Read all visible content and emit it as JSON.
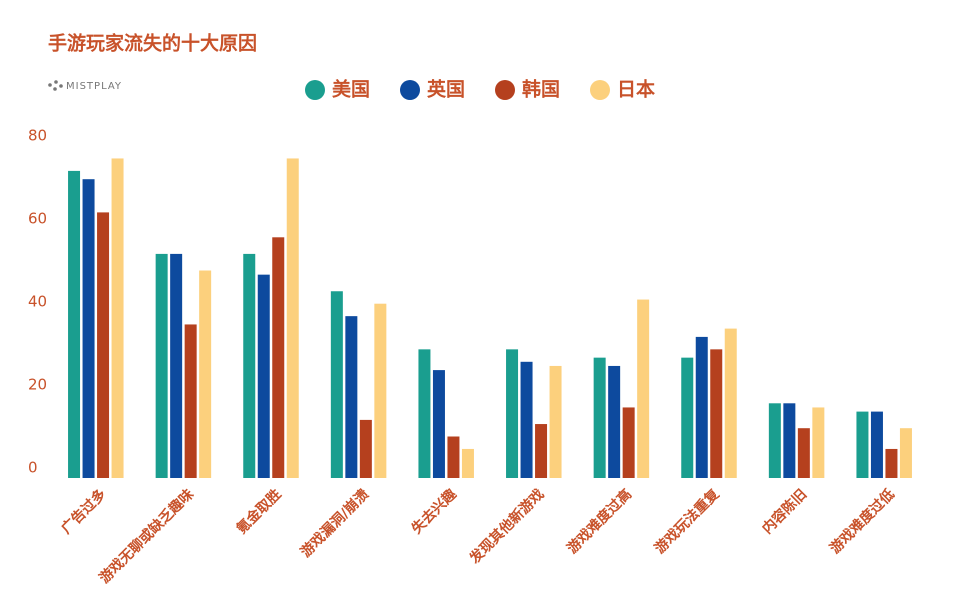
{
  "chart_data": {
    "type": "bar",
    "title": "手游玩家流失的十大原因",
    "source": "MISTPLAY",
    "categories": [
      "广告过多",
      "游戏无聊或缺乏趣味",
      "氪金取胜",
      "游戏漏洞/崩溃",
      "失去兴趣",
      "发现其他新游戏",
      "游戏难度过高",
      "游戏玩法重复",
      "内容陈旧",
      "游戏难度过低"
    ],
    "series": [
      {
        "name": "美国",
        "color": "#1a9e8f",
        "values": [
          74,
          54,
          54,
          45,
          31,
          31,
          29,
          29,
          18,
          16
        ]
      },
      {
        "name": "英国",
        "color": "#0d4a9e",
        "values": [
          72,
          54,
          49,
          39,
          26,
          28,
          27,
          34,
          18,
          16
        ]
      },
      {
        "name": "韩国",
        "color": "#b5401e",
        "values": [
          64,
          37,
          58,
          14,
          10,
          13,
          17,
          31,
          12,
          7
        ]
      },
      {
        "name": "日本",
        "color": "#fcd07d",
        "values": [
          77,
          50,
          77,
          42,
          7,
          27,
          43,
          36,
          17,
          12
        ]
      }
    ],
    "ylim": [
      0,
      80
    ],
    "yticks": [
      0,
      20,
      40,
      60,
      80
    ],
    "grid": false
  }
}
